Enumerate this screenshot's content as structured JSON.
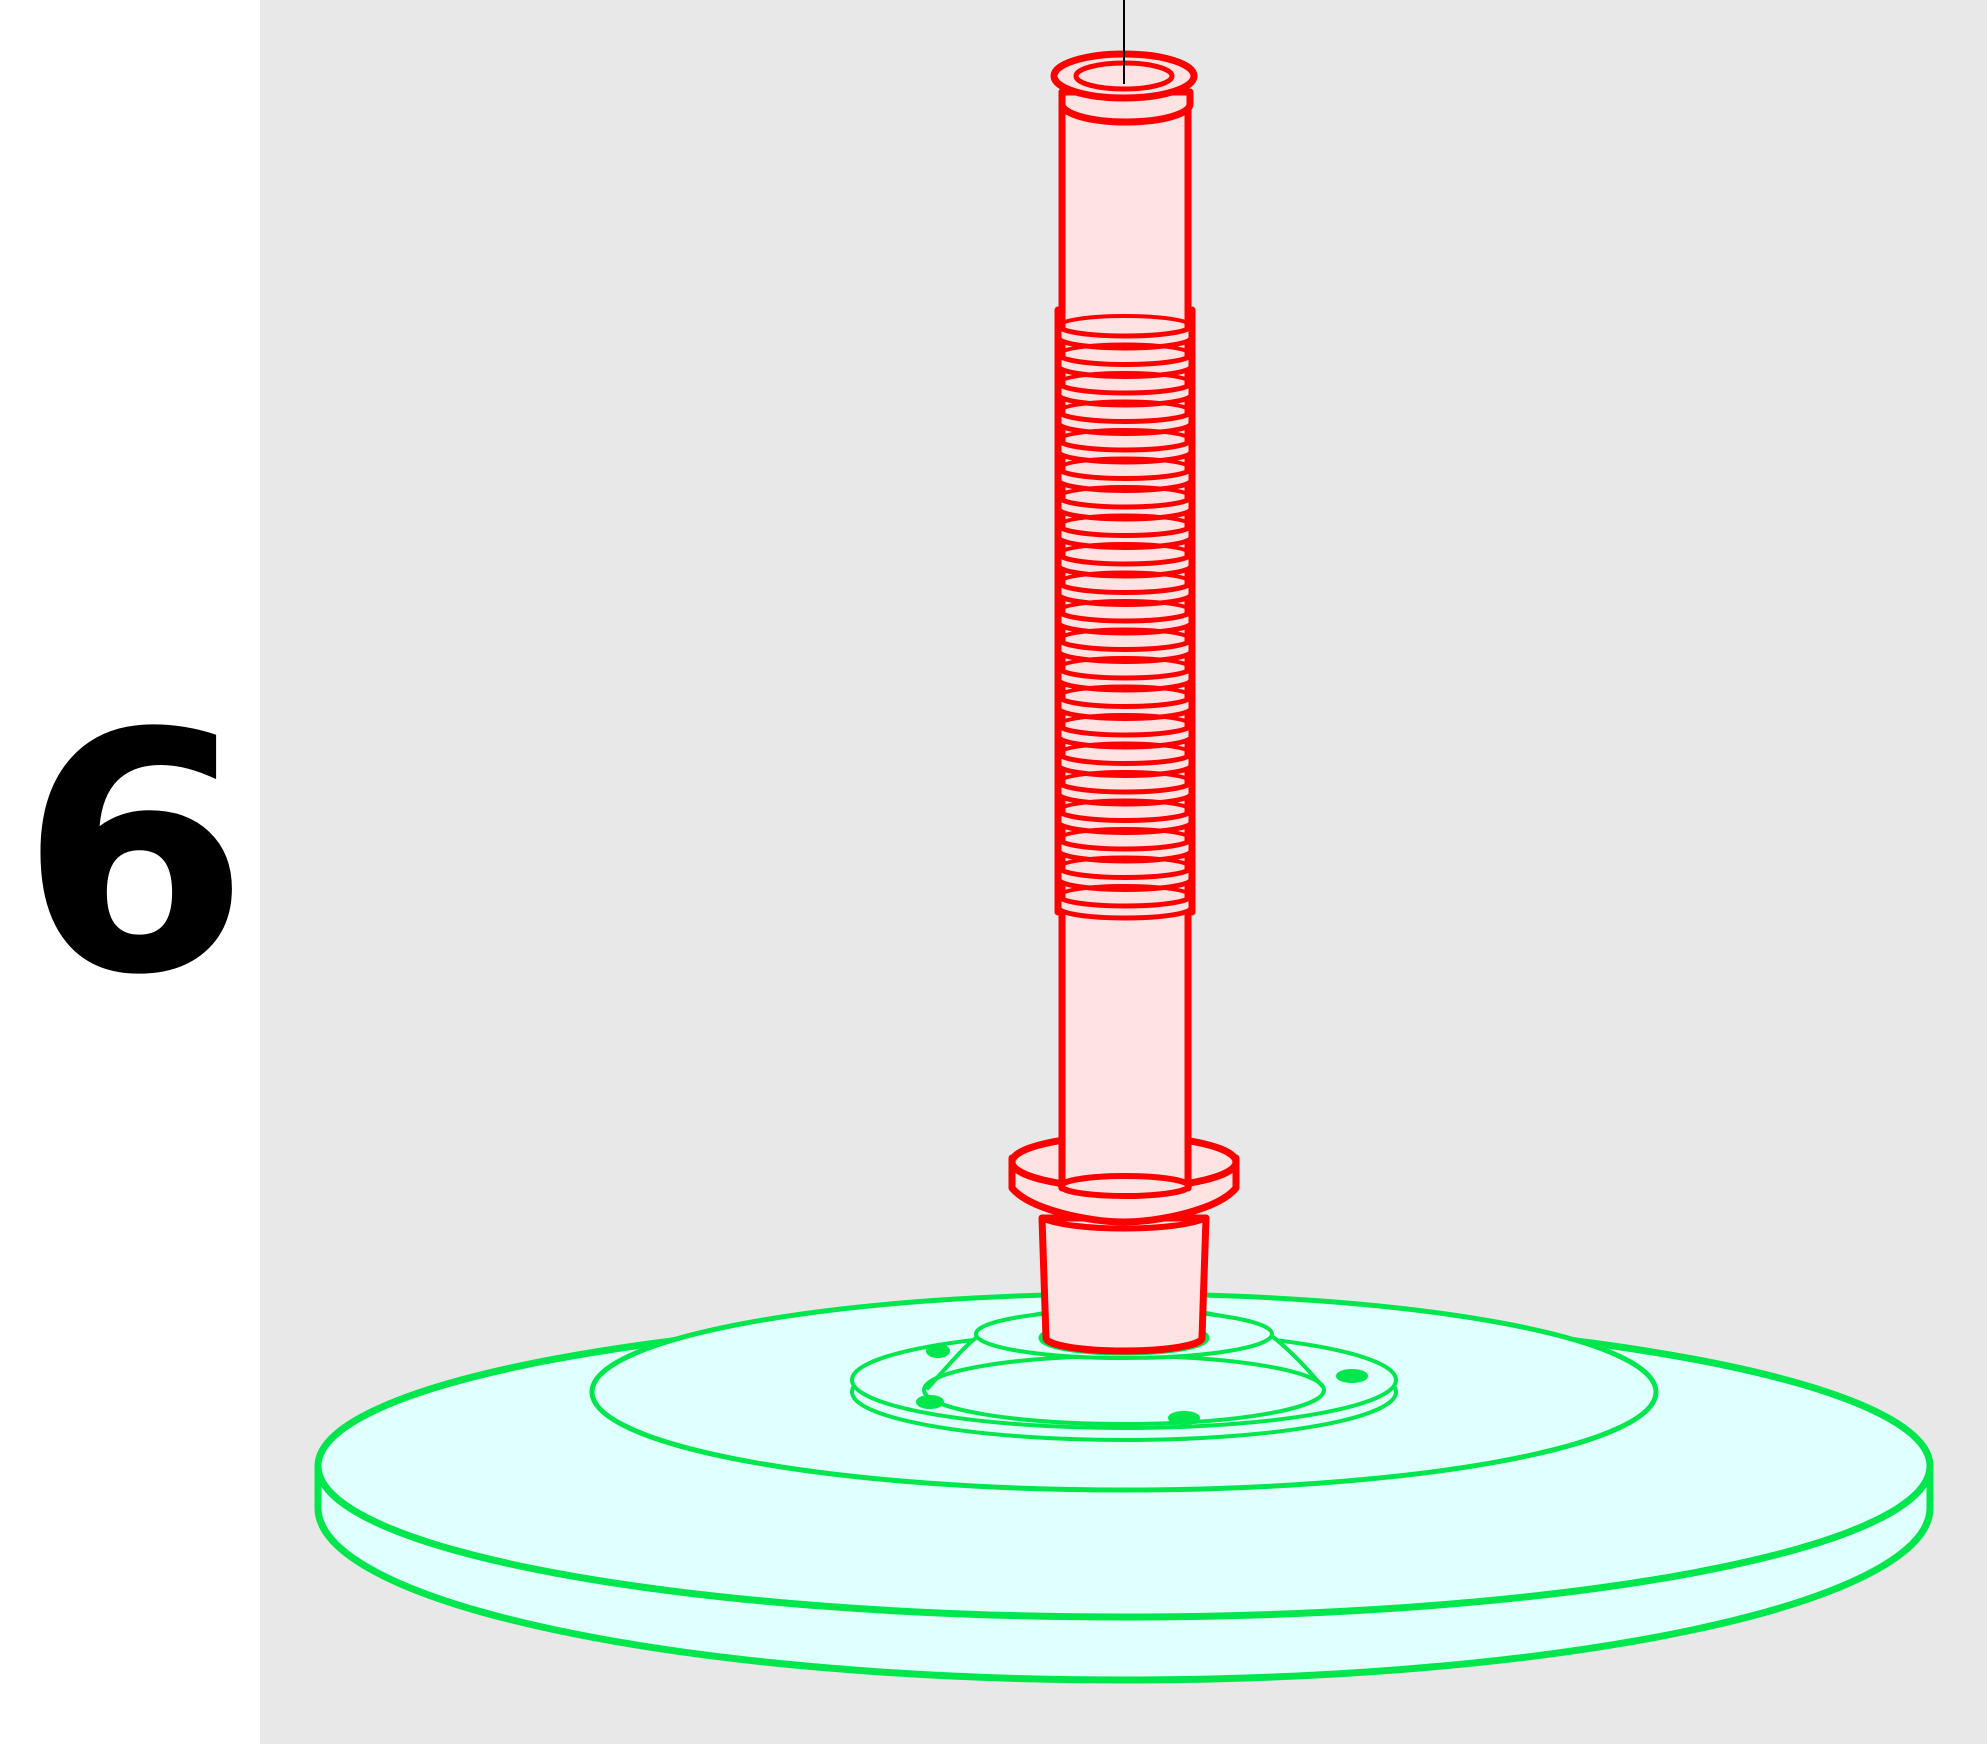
{
  "step": {
    "number": "6"
  },
  "illustration": {
    "components": [
      {
        "id": "valve-stem",
        "color": "#ff0000",
        "fill": "#ffe3e3"
      },
      {
        "id": "base-disc",
        "color": "#00e64d",
        "fill": "#e0ffff"
      }
    ],
    "background_color": "#e8e8e8",
    "leader_line_color": "#000000"
  }
}
